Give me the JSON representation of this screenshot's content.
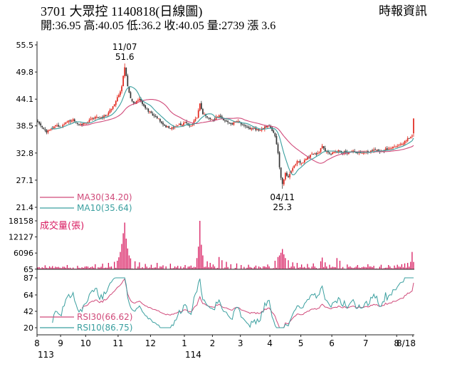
{
  "header": {
    "title": "3701 大眾控 1140818(日線圖)",
    "provider": "時報資訊",
    "quote_line": "開:36.95 高:40.05 低:36.2 收:40.05 量:2739 漲 3.6"
  },
  "quote": {
    "open": 36.95,
    "high": 40.05,
    "low": 36.2,
    "close": 40.05,
    "volume": 2739,
    "change": 3.6
  },
  "colors": {
    "up": "#e1251b",
    "down": "#333333",
    "ma30": "#d04a7a",
    "ma10": "#3a9f9f",
    "volume": "#d81b60",
    "rsi30": "#d04a7a",
    "rsi10": "#3a9f9f",
    "axis": "#222222",
    "text": "#000000"
  },
  "chart_data": {
    "type": "candlestick",
    "title": "3701 大眾控 1140818(日線圖)",
    "panels": [
      "price",
      "volume",
      "rsi"
    ],
    "n_days": 256,
    "seed": 11,
    "noise_amp": 0.28,
    "price_axis": {
      "ticks": [
        55.5,
        49.8,
        44.1,
        38.5,
        32.8,
        27.1,
        21.4
      ],
      "ylim": [
        21.4,
        55.5
      ]
    },
    "volume_axis": {
      "ticks": [
        18158,
        12127,
        6096,
        65
      ],
      "ylim": [
        0,
        18158
      ]
    },
    "rsi_axis": {
      "ticks": [
        87,
        64,
        42,
        20
      ],
      "ylim": [
        20,
        87
      ]
    },
    "x_ticks": [
      [
        "8",
        0
      ],
      [
        "9",
        16
      ],
      [
        "10",
        33
      ],
      [
        "11",
        55
      ],
      [
        "12",
        77
      ],
      [
        "1",
        100
      ],
      [
        "2",
        119
      ],
      [
        "3",
        138
      ],
      [
        "4",
        158
      ],
      [
        "5",
        179
      ],
      [
        "6",
        200
      ],
      [
        "7",
        223
      ],
      [
        "8",
        244
      ],
      [
        "8/18",
        255
      ]
    ],
    "year_labels": [
      [
        "113",
        0
      ],
      [
        "114",
        100
      ]
    ],
    "legends": {
      "ma30": "MA30(34.20)",
      "ma10": "MA10(35.64)",
      "volume": "成交量(張)",
      "rsi30": "RSI30(66.62)",
      "rsi10": "RSI10(86.75)"
    },
    "annotations": [
      {
        "idx": 59,
        "labels": [
          "11/07",
          "51.6"
        ],
        "position": "above"
      },
      {
        "idx": 166,
        "labels": [
          "04/11",
          "25.3"
        ],
        "position": "below"
      }
    ],
    "close_waypoints": [
      [
        0,
        39.3
      ],
      [
        3,
        38.2
      ],
      [
        6,
        37.1
      ],
      [
        9,
        37.9
      ],
      [
        12,
        38.6
      ],
      [
        16,
        38.2
      ],
      [
        20,
        39.4
      ],
      [
        24,
        39.9
      ],
      [
        28,
        38.7
      ],
      [
        33,
        39.2
      ],
      [
        39,
        40.4
      ],
      [
        44,
        40.1
      ],
      [
        48,
        41.3
      ],
      [
        52,
        43.0
      ],
      [
        55,
        45.0
      ],
      [
        57,
        46.8
      ],
      [
        59,
        50.8
      ],
      [
        61,
        46.8
      ],
      [
        63,
        44.3
      ],
      [
        66,
        43.2
      ],
      [
        69,
        44.2
      ],
      [
        73,
        42.2
      ],
      [
        77,
        41.2
      ],
      [
        81,
        40.1
      ],
      [
        85,
        38.8
      ],
      [
        90,
        37.9
      ],
      [
        95,
        38.6
      ],
      [
        100,
        39.2
      ],
      [
        104,
        38.5
      ],
      [
        108,
        40.2
      ],
      [
        110,
        43.2
      ],
      [
        112,
        41.0
      ],
      [
        115,
        40.3
      ],
      [
        119,
        39.8
      ],
      [
        123,
        40.7
      ],
      [
        127,
        39.6
      ],
      [
        131,
        38.9
      ],
      [
        135,
        39.5
      ],
      [
        138,
        38.8
      ],
      [
        143,
        38.1
      ],
      [
        148,
        37.6
      ],
      [
        153,
        37.9
      ],
      [
        156,
        38.5
      ],
      [
        158,
        38.1
      ],
      [
        161,
        36.3
      ],
      [
        163,
        32.8
      ],
      [
        164,
        29.8
      ],
      [
        165,
        27.6
      ],
      [
        166,
        26.3
      ],
      [
        168,
        28.6
      ],
      [
        170,
        27.7
      ],
      [
        173,
        29.6
      ],
      [
        176,
        31.1
      ],
      [
        179,
        30.7
      ],
      [
        183,
        31.9
      ],
      [
        187,
        32.6
      ],
      [
        191,
        32.9
      ],
      [
        193,
        34.3
      ],
      [
        195,
        33.2
      ],
      [
        198,
        32.7
      ],
      [
        200,
        32.9
      ],
      [
        205,
        33.3
      ],
      [
        210,
        32.7
      ],
      [
        215,
        33.1
      ],
      [
        220,
        32.8
      ],
      [
        223,
        33.1
      ],
      [
        228,
        33.5
      ],
      [
        233,
        33.1
      ],
      [
        238,
        33.7
      ],
      [
        242,
        34.1
      ],
      [
        244,
        34.3
      ],
      [
        247,
        34.7
      ],
      [
        249,
        35.3
      ],
      [
        251,
        35.9
      ],
      [
        253,
        36.2
      ],
      [
        254,
        36.45
      ],
      [
        255,
        40.05
      ]
    ],
    "special_days": {
      "59": {
        "high": 51.6
      },
      "166": {
        "low": 25.3
      },
      "255": {
        "open": 36.95,
        "high": 40.05,
        "low": 36.2,
        "close": 40.05
      }
    },
    "volume_base": [
      150,
      1100
    ],
    "volume_spikes": [
      [
        5,
        1500
      ],
      [
        10,
        1200
      ],
      [
        14,
        900
      ],
      [
        20,
        1600
      ],
      [
        27,
        1300
      ],
      [
        33,
        1100
      ],
      [
        39,
        1900
      ],
      [
        44,
        2100
      ],
      [
        48,
        2400
      ],
      [
        52,
        2800
      ],
      [
        54,
        3200
      ],
      [
        55,
        4500
      ],
      [
        56,
        6500
      ],
      [
        57,
        9500
      ],
      [
        58,
        13500
      ],
      [
        59,
        17500
      ],
      [
        60,
        11500
      ],
      [
        61,
        7800
      ],
      [
        62,
        5200
      ],
      [
        63,
        4100
      ],
      [
        66,
        3000
      ],
      [
        69,
        2600
      ],
      [
        73,
        2000
      ],
      [
        77,
        1700
      ],
      [
        81,
        2400
      ],
      [
        85,
        1500
      ],
      [
        90,
        2100
      ],
      [
        95,
        1300
      ],
      [
        100,
        1600
      ],
      [
        104,
        1400
      ],
      [
        108,
        4200
      ],
      [
        109,
        8500
      ],
      [
        110,
        18158
      ],
      [
        111,
        9200
      ],
      [
        112,
        5200
      ],
      [
        115,
        3000
      ],
      [
        117,
        2400
      ],
      [
        119,
        1800
      ],
      [
        123,
        4600
      ],
      [
        125,
        3400
      ],
      [
        128,
        2800
      ],
      [
        131,
        1900
      ],
      [
        135,
        2200
      ],
      [
        138,
        1600
      ],
      [
        143,
        1700
      ],
      [
        148,
        1400
      ],
      [
        153,
        1100
      ],
      [
        156,
        1800
      ],
      [
        161,
        3200
      ],
      [
        163,
        4600
      ],
      [
        164,
        5200
      ],
      [
        165,
        6200
      ],
      [
        166,
        7600
      ],
      [
        167,
        5600
      ],
      [
        168,
        4200
      ],
      [
        170,
        3400
      ],
      [
        173,
        2600
      ],
      [
        176,
        2400
      ],
      [
        179,
        1800
      ],
      [
        183,
        2000
      ],
      [
        187,
        2200
      ],
      [
        192,
        3000
      ],
      [
        193,
        4400
      ],
      [
        195,
        2600
      ],
      [
        198,
        1700
      ],
      [
        203,
        4200
      ],
      [
        205,
        3200
      ],
      [
        210,
        1800
      ],
      [
        217,
        1600
      ],
      [
        224,
        1900
      ],
      [
        228,
        1300
      ],
      [
        233,
        1700
      ],
      [
        238,
        1600
      ],
      [
        242,
        1400
      ],
      [
        244,
        1700
      ],
      [
        247,
        1900
      ],
      [
        249,
        2200
      ],
      [
        251,
        2400
      ],
      [
        253,
        2800
      ],
      [
        254,
        6500
      ],
      [
        255,
        2739
      ]
    ]
  }
}
